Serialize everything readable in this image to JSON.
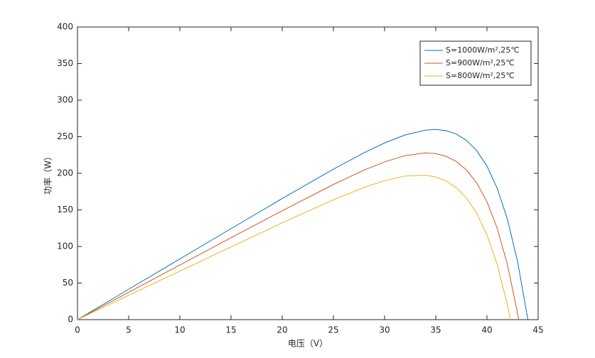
{
  "chart_data": {
    "type": "line",
    "xlabel": "电压（V）",
    "ylabel": "功率（W）",
    "xlim": [
      0,
      45
    ],
    "xticks": [
      0,
      5,
      10,
      15,
      20,
      25,
      30,
      35,
      40,
      45
    ],
    "ylim": [
      0,
      400
    ],
    "yticks": [
      0,
      50,
      100,
      150,
      200,
      250,
      300,
      350,
      400
    ],
    "legend": "northeast",
    "series": [
      {
        "name": "S=1000W/m²,25℃",
        "color": "#0072bd",
        "x": [
          0,
          5,
          10,
          15,
          20,
          25,
          28,
          30,
          32,
          34,
          35,
          36,
          37,
          38,
          39,
          40,
          41,
          42,
          43,
          44
        ],
        "values": [
          0,
          41.5,
          83.0,
          124.4,
          165.6,
          205.7,
          228.2,
          241.5,
          252.4,
          259.0,
          259.9,
          258.4,
          253.7,
          245.0,
          231.0,
          209.9,
          179.6,
          137.1,
          78.9,
          0
        ]
      },
      {
        "name": "S=900W/m²,25℃",
        "color": "#d95319",
        "x": [
          0,
          5,
          10,
          15,
          20,
          25,
          28,
          30,
          32,
          34,
          35,
          36,
          37,
          38,
          39,
          40,
          41,
          42,
          43,
          43.1
        ],
        "values": [
          0,
          37.4,
          74.7,
          112.0,
          148.9,
          184.7,
          204.4,
          215.6,
          224.2,
          227.9,
          226.9,
          223.3,
          216.3,
          204.6,
          186.8,
          161.1,
          125.1,
          75.4,
          7.9,
          0
        ]
      },
      {
        "name": "S=800W/m²,25℃",
        "color": "#edb120",
        "x": [
          0,
          5,
          10,
          15,
          20,
          25,
          28,
          30,
          32,
          34,
          35,
          36,
          37,
          38,
          39,
          40,
          41,
          42,
          42.3
        ],
        "values": [
          0,
          33.2,
          66.4,
          99.5,
          132.3,
          163.8,
          180.7,
          190.0,
          196.3,
          197.4,
          194.9,
          189.5,
          180.4,
          166.2,
          145.5,
          116.1,
          75.5,
          20.2,
          0
        ]
      }
    ]
  }
}
